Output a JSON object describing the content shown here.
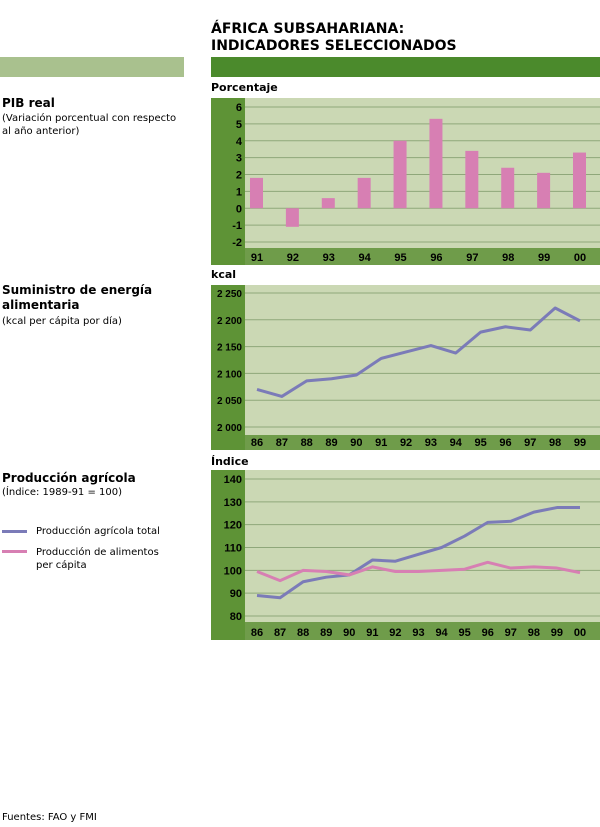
{
  "header": {
    "title_line1": "ÁFRICA SUBSAHARIANA:",
    "title_line2": "INDICADORES SELECCIONADOS"
  },
  "colors": {
    "axis_panel": "#5e9336",
    "plot_bg": "#cbd8b4",
    "bar": "#d77fb3",
    "line_total": "#7b7bb8",
    "line_percapita": "#d77fb3",
    "grid": "#8fa77a"
  },
  "sections": [
    {
      "title": "PIB real",
      "subtitle": "(Variación porcentual con respecto al año anterior)",
      "unit": "Porcentaje"
    },
    {
      "title": "Suministro de energía alimentaria",
      "subtitle": "(kcal per cápita por día)",
      "unit": "kcal"
    },
    {
      "title": "Producción agrícola",
      "subtitle": "(Índice: 1989-91 = 100)",
      "unit": "Índice"
    }
  ],
  "legend": {
    "items": [
      "Producción agrícola total",
      "Producción de alimentos per cápita"
    ]
  },
  "footer": {
    "source": "Fuentes: FAO y FMI"
  },
  "chart_data": [
    {
      "type": "bar",
      "categories": [
        "91",
        "92",
        "93",
        "94",
        "95",
        "96",
        "97",
        "98",
        "99",
        "00"
      ],
      "values": [
        1.8,
        -1.1,
        0.6,
        1.8,
        4.0,
        5.3,
        3.4,
        2.4,
        2.1,
        3.3
      ],
      "ylabel": "Porcentaje",
      "ylim": [
        -2,
        6
      ],
      "yticks": [
        "6",
        "5",
        "4",
        "3",
        "2",
        "1",
        "0",
        "-1",
        "-2"
      ],
      "grid": true
    },
    {
      "type": "line",
      "categories": [
        "86",
        "87",
        "88",
        "89",
        "90",
        "91",
        "92",
        "93",
        "94",
        "95",
        "96",
        "97",
        "98",
        "99"
      ],
      "series": [
        {
          "values": [
            2070,
            2057,
            2086,
            2090,
            2097,
            2128,
            2140,
            2152,
            2138,
            2177,
            2187,
            2181,
            2222,
            2198
          ]
        }
      ],
      "ylabel": "kcal",
      "ylim": [
        2000,
        2250
      ],
      "yticks": [
        "2 250",
        "2 200",
        "2 150",
        "2 100",
        "2 050",
        "2 000"
      ],
      "grid": true
    },
    {
      "type": "line",
      "categories": [
        "86",
        "87",
        "88",
        "89",
        "90",
        "91",
        "92",
        "93",
        "94",
        "95",
        "96",
        "97",
        "98",
        "99",
        "00"
      ],
      "series": [
        {
          "name": "Producción agrícola total",
          "values": [
            89,
            88,
            95,
            97,
            98,
            104.5,
            104,
            107,
            110,
            115,
            121,
            121.5,
            125.5,
            127.5,
            127.5
          ]
        },
        {
          "name": "Producción de alimentos per cápita",
          "values": [
            99.5,
            95.5,
            100,
            99.5,
            98,
            101.5,
            99.5,
            99.5,
            100,
            100.5,
            103.5,
            101,
            101.5,
            101,
            99
          ]
        }
      ],
      "ylabel": "Índice",
      "ylim": [
        80,
        140
      ],
      "yticks": [
        "140",
        "130",
        "120",
        "110",
        "100",
        "90",
        "80"
      ],
      "grid": true,
      "legend": "left"
    }
  ]
}
